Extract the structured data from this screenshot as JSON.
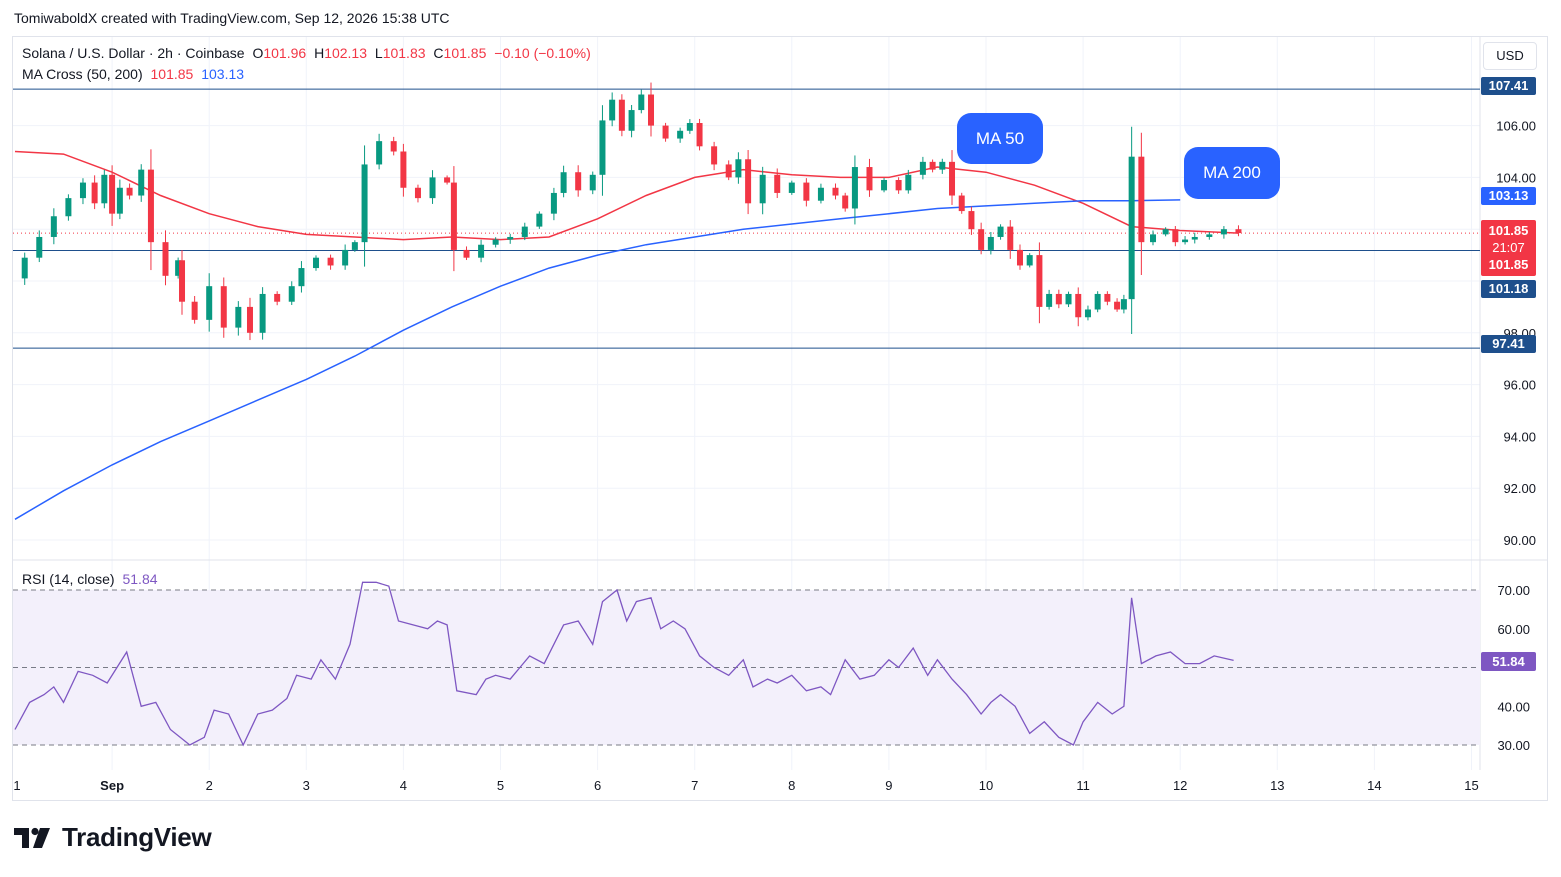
{
  "attribution": "TomiwaboldX created with TradingView.com, Sep 12, 2026 15:38 UTC",
  "brand": "TradingView",
  "currency_button": "USD",
  "legend": {
    "symbol": "Solana / U.S. Dollar · 2h · Coinbase",
    "o_label": "O",
    "o_value": "101.96",
    "h_label": "H",
    "h_value": "102.13",
    "l_label": "L",
    "l_value": "101.83",
    "c_label": "C",
    "c_value": "101.85",
    "change": "−0.10 (−0.10%)",
    "ma_label": "MA Cross (50, 200)",
    "ma50_value": "101.85",
    "ma200_value": "103.13",
    "rsi_label": "RSI (14, close)",
    "rsi_value": "51.84"
  },
  "annotations": {
    "ma50": "MA 50",
    "ma200": "MA 200"
  },
  "price_tags": {
    "resistance": "107.41",
    "ma200": "103.13",
    "last_price": "101.85",
    "countdown": "21:07",
    "ma50": "101.85",
    "support_mid": "101.18",
    "support": "97.41",
    "rsi": "51.84"
  },
  "colors": {
    "up": "#089981",
    "down": "#f23645",
    "ma50": "#f23645",
    "ma200": "#2962ff",
    "rsi": "#7e57c2",
    "hline": "#1e4f8c",
    "rsi_band": "#f3f0fb"
  },
  "chart_data": [
    {
      "type": "candlestick",
      "title": "Solana / U.S. Dollar · 2h · Coinbase",
      "x_tick_labels": [
        "1",
        "Sep",
        "2",
        "3",
        "4",
        "5",
        "6",
        "7",
        "8",
        "9",
        "10",
        "11",
        "12",
        "13",
        "14",
        "15"
      ],
      "y_tick_labels": [
        "106.00",
        "104.00",
        "98.00",
        "96.00",
        "94.00",
        "92.00",
        "90.00"
      ],
      "ylim": [
        89.7,
        108.5
      ],
      "horizontal_levels": [
        107.41,
        101.18,
        97.41
      ],
      "current_price": 101.85,
      "close_path": [
        [
          0,
          100.1
        ],
        [
          0.1,
          100.9
        ],
        [
          0.25,
          101.7
        ],
        [
          0.4,
          102.5
        ],
        [
          0.55,
          103.2
        ],
        [
          0.7,
          103.8
        ],
        [
          0.82,
          103.0
        ],
        [
          0.92,
          104.1
        ],
        [
          1.0,
          102.6
        ],
        [
          1.08,
          103.6
        ],
        [
          1.18,
          103.3
        ],
        [
          1.3,
          104.3
        ],
        [
          1.4,
          101.5
        ],
        [
          1.55,
          100.2
        ],
        [
          1.68,
          100.8
        ],
        [
          1.72,
          99.2
        ],
        [
          1.85,
          98.5
        ],
        [
          2.0,
          99.8
        ],
        [
          2.15,
          98.2
        ],
        [
          2.3,
          99.0
        ],
        [
          2.42,
          98.0
        ],
        [
          2.55,
          99.5
        ],
        [
          2.7,
          99.2
        ],
        [
          2.85,
          99.8
        ],
        [
          2.95,
          100.5
        ],
        [
          3.1,
          100.9
        ],
        [
          3.25,
          100.6
        ],
        [
          3.4,
          101.2
        ],
        [
          3.5,
          101.5
        ],
        [
          3.6,
          104.5
        ],
        [
          3.75,
          105.4
        ],
        [
          3.9,
          105.0
        ],
        [
          4.0,
          103.6
        ],
        [
          4.15,
          103.2
        ],
        [
          4.3,
          104.0
        ],
        [
          4.45,
          103.8
        ],
        [
          4.52,
          101.2
        ],
        [
          4.65,
          100.9
        ],
        [
          4.8,
          101.4
        ],
        [
          4.95,
          101.6
        ],
        [
          5.1,
          101.7
        ],
        [
          5.25,
          102.1
        ],
        [
          5.4,
          102.6
        ],
        [
          5.55,
          103.4
        ],
        [
          5.65,
          104.2
        ],
        [
          5.8,
          103.5
        ],
        [
          5.95,
          104.1
        ],
        [
          6.05,
          106.2
        ],
        [
          6.15,
          107.0
        ],
        [
          6.25,
          105.8
        ],
        [
          6.35,
          106.6
        ],
        [
          6.45,
          107.2
        ],
        [
          6.55,
          106.0
        ],
        [
          6.7,
          105.5
        ],
        [
          6.85,
          105.8
        ],
        [
          6.95,
          106.1
        ],
        [
          7.05,
          105.2
        ],
        [
          7.2,
          104.5
        ],
        [
          7.35,
          104.0
        ],
        [
          7.45,
          104.7
        ],
        [
          7.55,
          103.0
        ],
        [
          7.7,
          104.1
        ],
        [
          7.85,
          103.4
        ],
        [
          8.0,
          103.8
        ],
        [
          8.15,
          103.1
        ],
        [
          8.3,
          103.6
        ],
        [
          8.45,
          103.3
        ],
        [
          8.55,
          102.8
        ],
        [
          8.65,
          104.4
        ],
        [
          8.8,
          103.5
        ],
        [
          8.95,
          103.9
        ],
        [
          9.1,
          103.5
        ],
        [
          9.2,
          104.1
        ],
        [
          9.35,
          104.6
        ],
        [
          9.45,
          104.3
        ],
        [
          9.55,
          104.6
        ],
        [
          9.65,
          103.3
        ],
        [
          9.75,
          102.7
        ],
        [
          9.85,
          102.0
        ],
        [
          9.95,
          101.2
        ],
        [
          10.05,
          101.7
        ],
        [
          10.15,
          102.1
        ],
        [
          10.25,
          101.2
        ],
        [
          10.35,
          100.6
        ],
        [
          10.45,
          101.0
        ],
        [
          10.55,
          99.0
        ],
        [
          10.65,
          99.5
        ],
        [
          10.75,
          99.1
        ],
        [
          10.85,
          99.5
        ],
        [
          10.95,
          98.6
        ],
        [
          11.05,
          98.9
        ],
        [
          11.15,
          99.5
        ],
        [
          11.25,
          99.2
        ],
        [
          11.35,
          98.9
        ],
        [
          11.42,
          99.3
        ],
        [
          11.5,
          104.8
        ],
        [
          11.6,
          101.5
        ],
        [
          11.72,
          101.8
        ],
        [
          11.85,
          102.0
        ],
        [
          11.95,
          101.5
        ],
        [
          12.05,
          101.6
        ],
        [
          12.15,
          101.7
        ],
        [
          12.3,
          101.8
        ],
        [
          12.45,
          102.0
        ],
        [
          12.6,
          101.85
        ]
      ],
      "series": [
        {
          "name": "MA 50",
          "points": [
            [
              0,
              105.0
            ],
            [
              0.5,
              104.9
            ],
            [
              1.0,
              104.2
            ],
            [
              1.5,
              103.3
            ],
            [
              2.0,
              102.6
            ],
            [
              2.5,
              102.1
            ],
            [
              3.0,
              101.8
            ],
            [
              3.5,
              101.7
            ],
            [
              4.0,
              101.6
            ],
            [
              4.5,
              101.7
            ],
            [
              5.0,
              101.6
            ],
            [
              5.5,
              101.7
            ],
            [
              6.0,
              102.4
            ],
            [
              6.5,
              103.3
            ],
            [
              7.0,
              104.0
            ],
            [
              7.5,
              104.3
            ],
            [
              8.0,
              104.1
            ],
            [
              8.5,
              104.0
            ],
            [
              9.0,
              104.0
            ],
            [
              9.5,
              104.4
            ],
            [
              10.0,
              104.2
            ],
            [
              10.5,
              103.7
            ],
            [
              11.0,
              103.0
            ],
            [
              11.5,
              102.1
            ],
            [
              12.0,
              101.95
            ],
            [
              12.6,
              101.85
            ]
          ]
        },
        {
          "name": "MA 200",
          "points": [
            [
              0,
              90.8
            ],
            [
              0.5,
              91.9
            ],
            [
              1.0,
              92.9
            ],
            [
              1.5,
              93.8
            ],
            [
              2.0,
              94.6
            ],
            [
              2.5,
              95.4
            ],
            [
              3.0,
              96.2
            ],
            [
              3.5,
              97.1
            ],
            [
              4.0,
              98.1
            ],
            [
              4.5,
              99.0
            ],
            [
              5.0,
              99.8
            ],
            [
              5.5,
              100.5
            ],
            [
              6.0,
              101.0
            ],
            [
              6.5,
              101.4
            ],
            [
              7.0,
              101.7
            ],
            [
              7.5,
              102.0
            ],
            [
              8.0,
              102.2
            ],
            [
              8.5,
              102.4
            ],
            [
              9.0,
              102.6
            ],
            [
              9.5,
              102.8
            ],
            [
              10.0,
              102.9
            ],
            [
              10.5,
              103.0
            ],
            [
              11.0,
              103.1
            ],
            [
              11.5,
              103.1
            ],
            [
              12.0,
              103.13
            ]
          ]
        }
      ]
    },
    {
      "type": "line",
      "title": "RSI (14, close)",
      "y_tick_labels": [
        "70.00",
        "60.00",
        "40.00",
        "30.00"
      ],
      "ylim": [
        28,
        73
      ],
      "bands": [
        30,
        50,
        70
      ],
      "series": [
        {
          "name": "RSI",
          "points": [
            [
              0,
              34
            ],
            [
              0.15,
              41
            ],
            [
              0.3,
              43
            ],
            [
              0.4,
              45
            ],
            [
              0.5,
              41
            ],
            [
              0.65,
              49
            ],
            [
              0.8,
              48
            ],
            [
              0.95,
              46
            ],
            [
              1.15,
              54
            ],
            [
              1.3,
              40
            ],
            [
              1.45,
              41
            ],
            [
              1.6,
              34
            ],
            [
              1.8,
              30
            ],
            [
              1.95,
              32
            ],
            [
              2.05,
              39
            ],
            [
              2.2,
              38
            ],
            [
              2.35,
              30
            ],
            [
              2.5,
              38
            ],
            [
              2.65,
              39
            ],
            [
              2.8,
              42
            ],
            [
              2.9,
              48
            ],
            [
              3.05,
              47
            ],
            [
              3.15,
              52
            ],
            [
              3.3,
              47
            ],
            [
              3.45,
              56
            ],
            [
              3.58,
              72
            ],
            [
              3.72,
              72
            ],
            [
              3.85,
              71
            ],
            [
              3.95,
              62
            ],
            [
              4.1,
              61
            ],
            [
              4.25,
              60
            ],
            [
              4.35,
              62
            ],
            [
              4.45,
              61
            ],
            [
              4.55,
              44
            ],
            [
              4.75,
              43
            ],
            [
              4.85,
              47
            ],
            [
              4.95,
              48
            ],
            [
              5.1,
              47
            ],
            [
              5.2,
              50
            ],
            [
              5.3,
              53
            ],
            [
              5.45,
              51
            ],
            [
              5.65,
              61
            ],
            [
              5.8,
              62
            ],
            [
              5.95,
              56
            ],
            [
              6.05,
              67
            ],
            [
              6.2,
              70
            ],
            [
              6.3,
              62
            ],
            [
              6.4,
              67
            ],
            [
              6.55,
              68
            ],
            [
              6.65,
              60
            ],
            [
              6.78,
              62
            ],
            [
              6.9,
              60
            ],
            [
              7.05,
              53
            ],
            [
              7.2,
              50
            ],
            [
              7.35,
              48
            ],
            [
              7.5,
              52
            ],
            [
              7.6,
              45
            ],
            [
              7.75,
              47
            ],
            [
              7.85,
              46
            ],
            [
              8.0,
              48
            ],
            [
              8.15,
              44
            ],
            [
              8.3,
              45
            ],
            [
              8.4,
              43
            ],
            [
              8.55,
              52
            ],
            [
              8.7,
              47
            ],
            [
              8.85,
              48
            ],
            [
              9.0,
              52
            ],
            [
              9.1,
              50
            ],
            [
              9.25,
              55
            ],
            [
              9.4,
              48
            ],
            [
              9.5,
              52
            ],
            [
              9.65,
              47
            ],
            [
              9.8,
              43
            ],
            [
              9.95,
              38
            ],
            [
              10.05,
              41
            ],
            [
              10.15,
              43
            ],
            [
              10.3,
              40
            ],
            [
              10.45,
              33
            ],
            [
              10.6,
              36
            ],
            [
              10.75,
              32
            ],
            [
              10.9,
              30
            ],
            [
              11.0,
              36
            ],
            [
              11.15,
              41
            ],
            [
              11.3,
              38
            ],
            [
              11.42,
              40
            ],
            [
              11.5,
              68
            ],
            [
              11.6,
              51
            ],
            [
              11.75,
              53
            ],
            [
              11.9,
              54
            ],
            [
              12.05,
              51
            ],
            [
              12.2,
              51
            ],
            [
              12.35,
              53
            ],
            [
              12.55,
              51.84
            ]
          ]
        }
      ]
    }
  ]
}
